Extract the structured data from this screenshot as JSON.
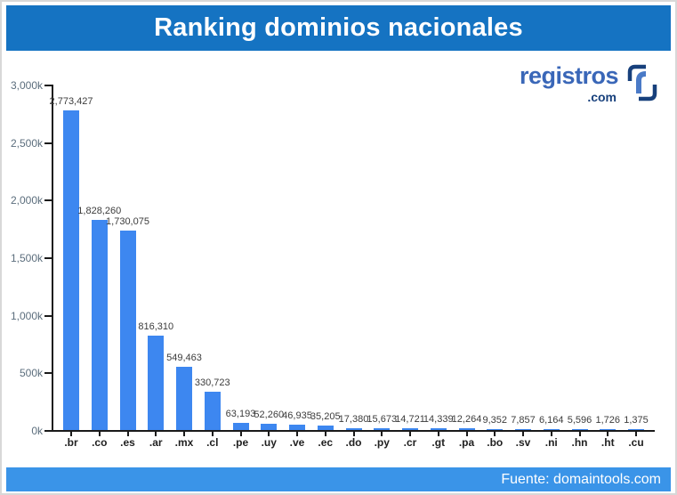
{
  "header": {
    "title": "Ranking dominios nacionales"
  },
  "logo": {
    "name": "registros",
    "tld": ".com",
    "icon": "registros-brackets-icon",
    "name_color": "#3a67b8",
    "tld_color": "#17407c",
    "icon_bracket_color": "#17407c",
    "icon_r_color": "#4a7ac7"
  },
  "chart_data": {
    "type": "bar",
    "title": "Ranking dominios nacionales",
    "categories": [
      ".br",
      ".co",
      ".es",
      ".ar",
      ".mx",
      ".cl",
      ".pe",
      ".uy",
      ".ve",
      ".ec",
      ".do",
      ".py",
      ".cr",
      ".gt",
      ".pa",
      ".bo",
      ".sv",
      ".ni",
      ".hn",
      ".ht",
      ".cu"
    ],
    "values": [
      2773427,
      1828260,
      1730075,
      816310,
      549463,
      330723,
      63193,
      52260,
      46935,
      35205,
      17380,
      15673,
      14721,
      14339,
      12264,
      9352,
      7857,
      6164,
      5596,
      1726,
      1375
    ],
    "value_labels": [
      "2,773,427",
      "1,828,260",
      "1,730,075",
      "816,310",
      "549,463",
      "330,723",
      "63,193",
      "52,260",
      "46,935",
      "35,205",
      "17,380",
      "15,673",
      "14,721",
      "14,339",
      "12,264",
      "9,352",
      "7,857",
      "6,164",
      "5,596",
      "1,726",
      "1,375"
    ],
    "y_ticks": [
      "3,000k",
      "2,500k",
      "2,000k",
      "1,500k",
      "1,000k",
      "500k",
      "0k"
    ],
    "ylim": [
      0,
      3000000
    ],
    "xlabel": "",
    "ylabel": "",
    "grid": false,
    "legend": false,
    "bar_color": "#3d87f0"
  },
  "footer": {
    "source": "Fuente: domaintools.com"
  },
  "colors": {
    "header_bg": "#1573c2",
    "footer_bg": "#3a94e8",
    "bar": "#3d87f0",
    "axis": "#1a1a1a",
    "value_label": "#3c3c3c",
    "ytick_label": "#5c6e7d"
  }
}
